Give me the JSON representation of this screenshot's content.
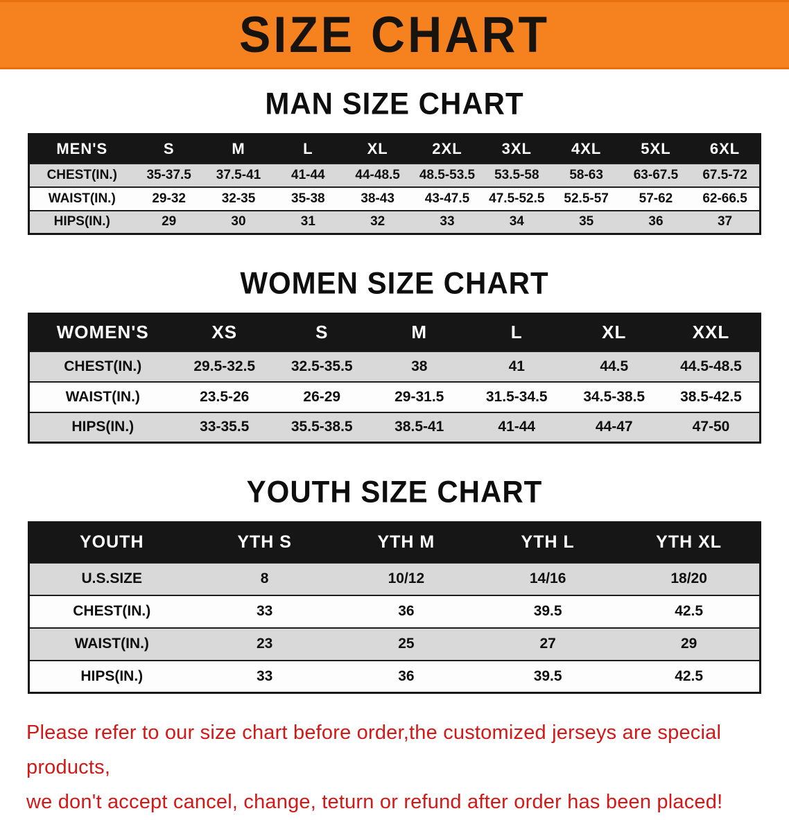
{
  "banner": {
    "title": "SIZE CHART",
    "bg_color": "#F5821F",
    "text_color": "#17130e"
  },
  "men": {
    "heading": "MAN SIZE CHART",
    "header": {
      "label": "MEN'S",
      "sizes": [
        "S",
        "M",
        "L",
        "XL",
        "2XL",
        "3XL",
        "4XL",
        "5XL",
        "6XL"
      ]
    },
    "rows": [
      {
        "label": "CHEST(IN.)",
        "values": [
          "35-37.5",
          "37.5-41",
          "41-44",
          "44-48.5",
          "48.5-53.5",
          "53.5-58",
          "58-63",
          "63-67.5",
          "67.5-72"
        ]
      },
      {
        "label": "WAIST(IN.)",
        "values": [
          "29-32",
          "32-35",
          "35-38",
          "38-43",
          "43-47.5",
          "47.5-52.5",
          "52.5-57",
          "57-62",
          "62-66.5"
        ]
      },
      {
        "label": "HIPS(IN.)",
        "values": [
          "29",
          "30",
          "31",
          "32",
          "33",
          "34",
          "35",
          "36",
          "37"
        ]
      }
    ]
  },
  "women": {
    "heading": "WOMEN SIZE CHART",
    "header": {
      "label": "WOMEN'S",
      "sizes": [
        "XS",
        "S",
        "M",
        "L",
        "XL",
        "XXL"
      ]
    },
    "rows": [
      {
        "label": "CHEST(IN.)",
        "values": [
          "29.5-32.5",
          "32.5-35.5",
          "38",
          "41",
          "44.5",
          "44.5-48.5"
        ]
      },
      {
        "label": "WAIST(IN.)",
        "values": [
          "23.5-26",
          "26-29",
          "29-31.5",
          "31.5-34.5",
          "34.5-38.5",
          "38.5-42.5"
        ]
      },
      {
        "label": "HIPS(IN.)",
        "values": [
          "33-35.5",
          "35.5-38.5",
          "38.5-41",
          "41-44",
          "44-47",
          "47-50"
        ]
      }
    ]
  },
  "youth": {
    "heading": "YOUTH SIZE CHART",
    "header": {
      "label": "YOUTH",
      "sizes": [
        "YTH S",
        "YTH M",
        "YTH L",
        "YTH XL"
      ]
    },
    "rows": [
      {
        "label": "U.S.SIZE",
        "values": [
          "8",
          "10/12",
          "14/16",
          "18/20"
        ]
      },
      {
        "label": "CHEST(IN.)",
        "values": [
          "33",
          "36",
          "39.5",
          "42.5"
        ]
      },
      {
        "label": "WAIST(IN.)",
        "values": [
          "23",
          "25",
          "27",
          "29"
        ]
      },
      {
        "label": "HIPS(IN.)",
        "values": [
          "33",
          "36",
          "39.5",
          "42.5"
        ]
      }
    ]
  },
  "footer": {
    "line1": "Please refer to our size chart before order,the customized jerseys are special products,",
    "line2": "we don't accept cancel, change, teturn or refund after order has been placed!",
    "color": "#d31818"
  }
}
